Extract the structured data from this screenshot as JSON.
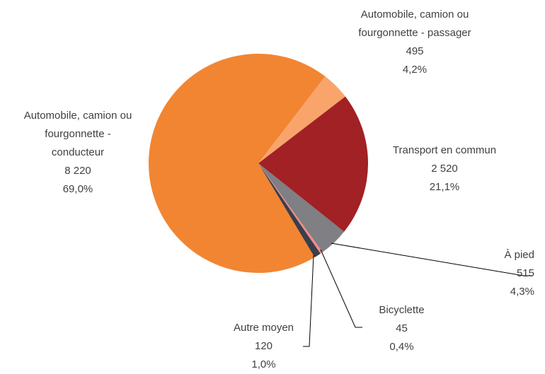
{
  "chart_data": {
    "type": "pie",
    "categories": [
      "Automobile, camion ou fourgonnette - passager",
      "Transport en commun",
      "À pied",
      "Bicyclette",
      "Autre moyen",
      "Automobile, camion ou fourgonnette - conducteur"
    ],
    "values": [
      495,
      2520,
      515,
      45,
      120,
      8220
    ],
    "value_labels": [
      "495",
      "2 520",
      "515",
      "45",
      "120",
      "8 220"
    ],
    "percentages": [
      4.2,
      21.1,
      4.3,
      0.4,
      1.0,
      69.0
    ],
    "percentage_labels": [
      "4,2%",
      "21,1%",
      "4,3%",
      "0,4%",
      "1,0%",
      "69,0%"
    ],
    "colors": [
      "#f9a46b",
      "#a12125",
      "#7f7f84",
      "#f08a8a",
      "#3b3e48",
      "#f28532"
    ]
  }
}
